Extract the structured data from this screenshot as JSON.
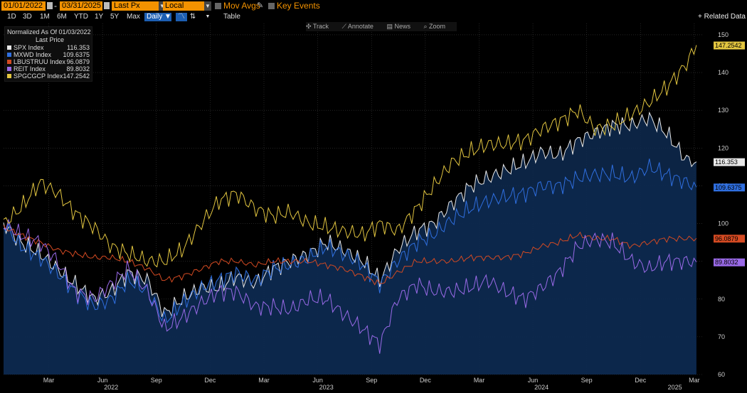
{
  "toolbar": {
    "start_date": "01/01/2022",
    "end_date": "03/31/2025",
    "field": "Last Px",
    "currency": "Local CCY",
    "mov_avgs": "Mov Avgs",
    "key_events": "Key Events",
    "ranges": [
      "1D",
      "3D",
      "1M",
      "6M",
      "YTD",
      "1Y",
      "5Y",
      "Max"
    ],
    "frequency": "Daily",
    "table": "Table",
    "related_data": "+ Related Data"
  },
  "tools": [
    "Track",
    "Annotate",
    "News",
    "Zoom"
  ],
  "colors": {
    "SPX": "#e8e8e8",
    "MXWD": "#2f6fe0",
    "LBUSTRUU": "#d44a22",
    "REIT": "#9a6ae8",
    "SPGCGCP": "#e3c640",
    "fill": "#0e2a50",
    "field": "#f39200"
  },
  "chart_data": {
    "type": "line",
    "legend_title": "Normalized As Of 01/03/2022",
    "legend_subtitle": "Last Price",
    "ylim": [
      60,
      153
    ],
    "y_ticks": [
      60,
      70,
      80,
      90,
      100,
      110,
      120,
      130,
      140,
      150
    ],
    "x_range": [
      2022.0,
      2025.25
    ],
    "month_ticks": [
      {
        "label": "Mar",
        "t": 2022.21
      },
      {
        "label": "Jun",
        "t": 2022.46
      },
      {
        "label": "Sep",
        "t": 2022.71
      },
      {
        "label": "Dec",
        "t": 2022.96
      },
      {
        "label": "Mar",
        "t": 2023.21
      },
      {
        "label": "Jun",
        "t": 2023.46
      },
      {
        "label": "Sep",
        "t": 2023.71
      },
      {
        "label": "Dec",
        "t": 2023.96
      },
      {
        "label": "Mar",
        "t": 2024.21
      },
      {
        "label": "Jun",
        "t": 2024.46
      },
      {
        "label": "Sep",
        "t": 2024.71
      },
      {
        "label": "Dec",
        "t": 2024.96
      },
      {
        "label": "Mar",
        "t": 2025.21
      }
    ],
    "year_labels": [
      {
        "label": "2022",
        "t": 2022.5
      },
      {
        "label": "2023",
        "t": 2023.5
      },
      {
        "label": "2024",
        "t": 2024.5
      },
      {
        "label": "2025",
        "t": 2025.12
      }
    ],
    "x": [
      2022.0,
      2022.08,
      2022.17,
      2022.25,
      2022.33,
      2022.42,
      2022.5,
      2022.58,
      2022.67,
      2022.75,
      2022.83,
      2022.92,
      2023.0,
      2023.08,
      2023.17,
      2023.25,
      2023.33,
      2023.42,
      2023.5,
      2023.58,
      2023.67,
      2023.75,
      2023.83,
      2023.92,
      2024.0,
      2024.08,
      2024.17,
      2024.25,
      2024.33,
      2024.42,
      2024.5,
      2024.58,
      2024.67,
      2024.75,
      2024.83,
      2024.92,
      2025.0,
      2025.08,
      2025.17,
      2025.22
    ],
    "series": [
      {
        "name": "SPX Index",
        "key": "SPX",
        "last": "116.353",
        "filled": true,
        "values": [
          100,
          95,
          92,
          88,
          84,
          80,
          82,
          87,
          85,
          76,
          80,
          83,
          83,
          86,
          84,
          88,
          90,
          92,
          95,
          93,
          90,
          85,
          93,
          98,
          100,
          105,
          110,
          112,
          114,
          116,
          119,
          118,
          122,
          124,
          126,
          126,
          128,
          124,
          117,
          116.35
        ]
      },
      {
        "name": "MXWD Index",
        "key": "MXWD",
        "last": "109.6375",
        "filled": true,
        "values": [
          100,
          94,
          91,
          87,
          82,
          78,
          80,
          85,
          82,
          74,
          79,
          83,
          85,
          87,
          85,
          88,
          89,
          91,
          94,
          92,
          89,
          84,
          90,
          95,
          97,
          101,
          104,
          106,
          107,
          108,
          110,
          110,
          112,
          113,
          113,
          112,
          115,
          113,
          111,
          109.64
        ]
      },
      {
        "name": "LBUSTRUU Index",
        "key": "LBUSTRUU",
        "last": "96.0879",
        "filled": false,
        "values": [
          99,
          97,
          95,
          93,
          92,
          91,
          91,
          90,
          88,
          85,
          86,
          88,
          90,
          90,
          89,
          90,
          90,
          90,
          89,
          88,
          86,
          84,
          87,
          90,
          90,
          90,
          91,
          91,
          91,
          92,
          94,
          95,
          97,
          96,
          96,
          94,
          95,
          96,
          96,
          96.09
        ]
      },
      {
        "name": "REIT Index",
        "key": "REIT",
        "last": "89.8032",
        "filled": false,
        "values": [
          100,
          97,
          95,
          90,
          82,
          80,
          84,
          88,
          82,
          72,
          75,
          79,
          82,
          82,
          78,
          78,
          77,
          80,
          80,
          76,
          72,
          68,
          80,
          84,
          82,
          82,
          83,
          85,
          82,
          80,
          83,
          87,
          94,
          96,
          95,
          90,
          88,
          90,
          90,
          89.8
        ]
      },
      {
        "name": "SPGCGCP Index",
        "key": "SPGCGCP",
        "last": "147.2542",
        "filled": false,
        "values": [
          100,
          104,
          111,
          108,
          103,
          99,
          94,
          92,
          90,
          90,
          93,
          100,
          106,
          108,
          104,
          102,
          103,
          100,
          99,
          98,
          97,
          100,
          98,
          104,
          110,
          116,
          119,
          121,
          121,
          122,
          125,
          127,
          130,
          125,
          126,
          129,
          132,
          136,
          142,
          147.25
        ]
      }
    ]
  }
}
